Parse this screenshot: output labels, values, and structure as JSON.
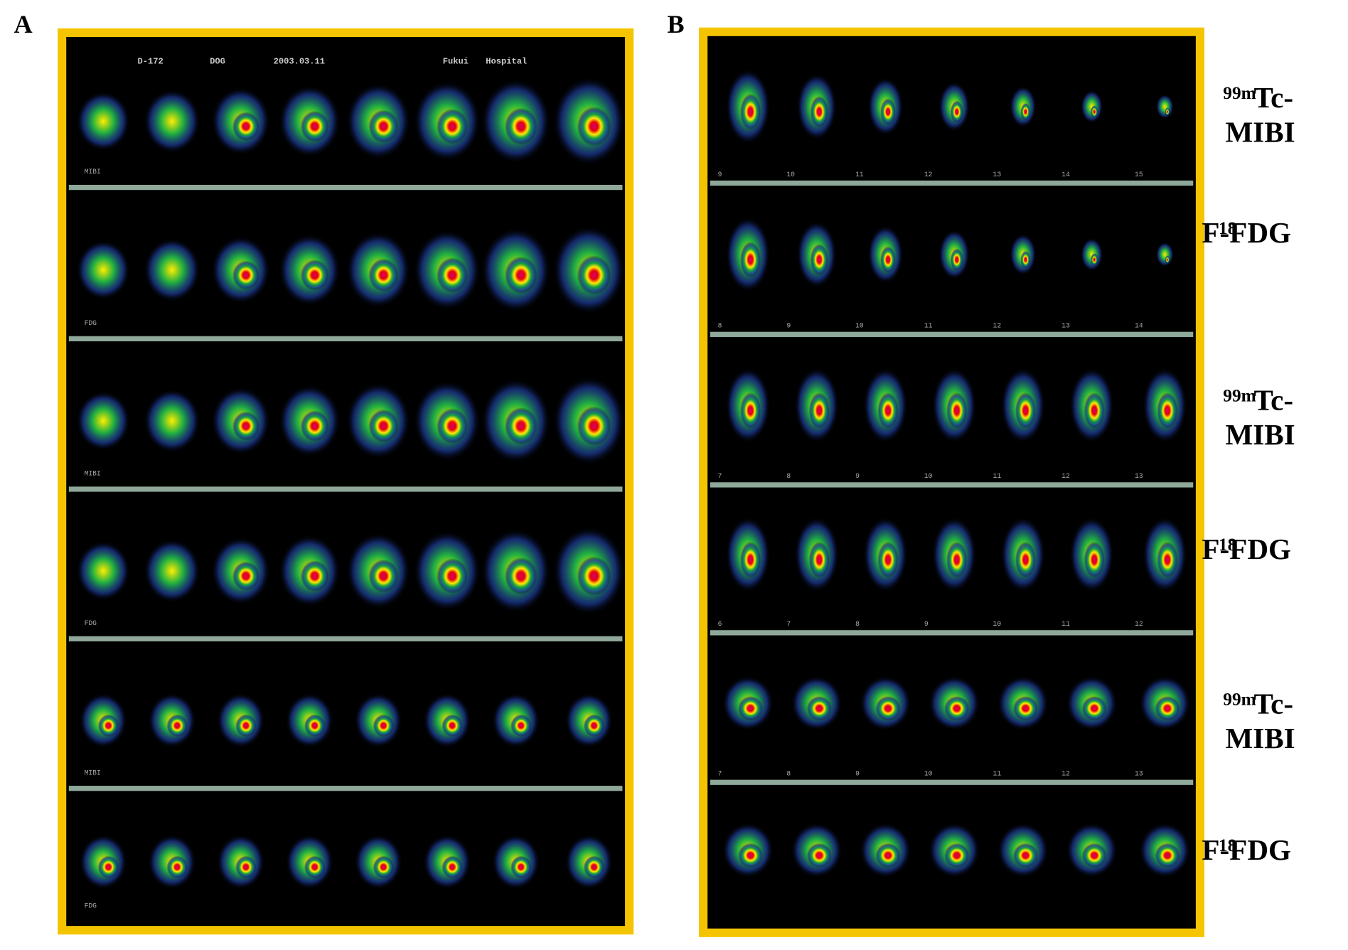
{
  "panels": [
    {
      "letter": "A",
      "header": [
        "D-172",
        "DOG",
        "2003.03.11",
        "Fukui",
        "Hospital"
      ],
      "row_labels": [
        "MIBI",
        "FDG",
        "MIBI",
        "FDG",
        "MIBI",
        "FDG"
      ]
    },
    {
      "letter": "B",
      "slice_numbers": [
        [
          "9",
          "10",
          "11",
          "12",
          "13",
          "14",
          "15"
        ],
        [
          "8",
          "9",
          "10",
          "11",
          "12",
          "13",
          "14"
        ],
        [
          "7",
          "8",
          "9",
          "10",
          "11",
          "12",
          "13"
        ],
        [
          "6",
          "7",
          "8",
          "9",
          "10",
          "11",
          "12"
        ],
        [
          "7",
          "8",
          "9",
          "10",
          "11",
          "12",
          "13"
        ]
      ],
      "row_labels": [
        {
          "sup": "99m",
          "lines": [
            "Tc-",
            "MIBI"
          ]
        },
        {
          "sup": "18",
          "lines": [
            "F-FDG"
          ]
        },
        {
          "sup": "99m",
          "lines": [
            "Tc-",
            "MIBI"
          ]
        },
        {
          "sup": "18",
          "lines": [
            "F-FDG"
          ]
        },
        {
          "sup": "99m",
          "lines": [
            "Tc-",
            "MIBI"
          ]
        },
        {
          "sup": "18",
          "lines": [
            "F-FDG"
          ]
        }
      ]
    }
  ]
}
